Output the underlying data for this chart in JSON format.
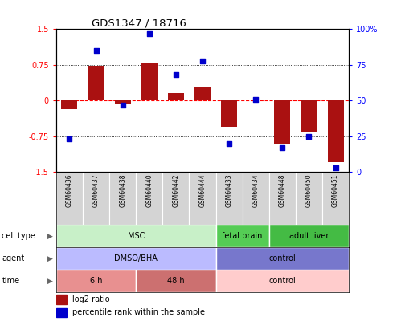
{
  "title": "GDS1347 / 18716",
  "samples": [
    "GSM60436",
    "GSM60437",
    "GSM60438",
    "GSM60440",
    "GSM60442",
    "GSM60444",
    "GSM60433",
    "GSM60434",
    "GSM60448",
    "GSM60450",
    "GSM60451"
  ],
  "log2_ratio": [
    -0.18,
    0.73,
    -0.07,
    0.78,
    0.15,
    0.28,
    -0.55,
    0.02,
    -0.9,
    -0.65,
    -1.3
  ],
  "percentile_rank": [
    23,
    85,
    47,
    97,
    68,
    78,
    20,
    51,
    17,
    25,
    3
  ],
  "cell_type_groups": [
    {
      "label": "MSC",
      "start": 0,
      "end": 6,
      "color": "#c8f0c8"
    },
    {
      "label": "fetal brain",
      "start": 6,
      "end": 8,
      "color": "#55cc55"
    },
    {
      "label": "adult liver",
      "start": 8,
      "end": 11,
      "color": "#44bb44"
    }
  ],
  "agent_groups": [
    {
      "label": "DMSO/BHA",
      "start": 0,
      "end": 6,
      "color": "#bbbbff"
    },
    {
      "label": "control",
      "start": 6,
      "end": 11,
      "color": "#7777cc"
    }
  ],
  "time_groups": [
    {
      "label": "6 h",
      "start": 0,
      "end": 3,
      "color": "#e89090"
    },
    {
      "label": "48 h",
      "start": 3,
      "end": 6,
      "color": "#cc7070"
    },
    {
      "label": "control",
      "start": 6,
      "end": 11,
      "color": "#ffcccc"
    }
  ],
  "bar_color": "#aa1111",
  "dot_color": "#0000cc",
  "ylim_left": [
    -1.5,
    1.5
  ],
  "ylim_right": [
    0,
    100
  ],
  "yticks_left": [
    -1.5,
    -0.75,
    0,
    0.75,
    1.5
  ],
  "yticks_right": [
    0,
    25,
    50,
    75,
    100
  ],
  "row_labels": [
    "cell type",
    "agent",
    "time"
  ],
  "legend_items": [
    {
      "color": "#aa1111",
      "label": "log2 ratio"
    },
    {
      "color": "#0000cc",
      "label": "percentile rank within the sample"
    }
  ]
}
